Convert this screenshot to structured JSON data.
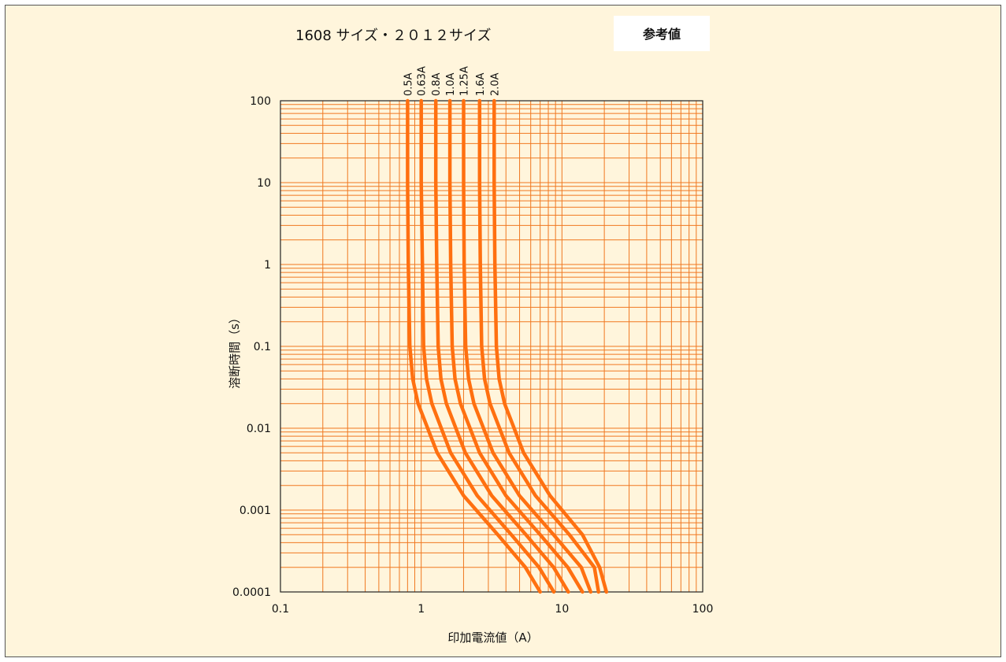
{
  "chart_data": {
    "type": "line",
    "title": "1608 サイズ・２０１２サイズ",
    "badge": "参考値",
    "xlabel": "印加電流値（A）",
    "ylabel": "溶断時間（s）",
    "x_scale": "log",
    "y_scale": "log",
    "xlim": [
      0.1,
      100
    ],
    "ylim": [
      0.0001,
      100
    ],
    "x_ticks": [
      "0.1",
      "1",
      "10",
      "100"
    ],
    "y_ticks": [
      "100",
      "10",
      "1",
      "0.1",
      "0.01",
      "0.001",
      "0.0001"
    ],
    "grid": true,
    "colors": {
      "background": "#fff5dc",
      "grid": "#f07820",
      "curve": "#ff7010",
      "badge_bg": "#ffffff"
    },
    "series": [
      {
        "name": "0.5A",
        "points": [
          [
            0.8,
            100
          ],
          [
            0.8,
            10
          ],
          [
            0.81,
            1
          ],
          [
            0.83,
            0.1
          ],
          [
            0.87,
            0.04
          ],
          [
            0.95,
            0.02
          ],
          [
            1.3,
            0.005
          ],
          [
            2.0,
            0.0015
          ],
          [
            3.5,
            0.0005
          ],
          [
            5.5,
            0.0002
          ],
          [
            7.0,
            0.0001
          ]
        ]
      },
      {
        "name": "0.63A",
        "points": [
          [
            1.0,
            100
          ],
          [
            1.0,
            10
          ],
          [
            1.02,
            1
          ],
          [
            1.04,
            0.1
          ],
          [
            1.09,
            0.04
          ],
          [
            1.19,
            0.02
          ],
          [
            1.62,
            0.005
          ],
          [
            2.5,
            0.0015
          ],
          [
            4.37,
            0.0005
          ],
          [
            6.87,
            0.0002
          ],
          [
            8.75,
            0.0001
          ]
        ]
      },
      {
        "name": "0.8A",
        "points": [
          [
            1.27,
            100
          ],
          [
            1.27,
            10
          ],
          [
            1.29,
            1
          ],
          [
            1.32,
            0.1
          ],
          [
            1.38,
            0.04
          ],
          [
            1.51,
            0.02
          ],
          [
            2.06,
            0.005
          ],
          [
            3.17,
            0.0015
          ],
          [
            5.55,
            0.0005
          ],
          [
            8.72,
            0.0002
          ],
          [
            11.1,
            0.0001
          ]
        ]
      },
      {
        "name": "1.0A",
        "points": [
          [
            1.6,
            100
          ],
          [
            1.6,
            10
          ],
          [
            1.62,
            1
          ],
          [
            1.66,
            0.1
          ],
          [
            1.74,
            0.04
          ],
          [
            1.9,
            0.02
          ],
          [
            2.6,
            0.005
          ],
          [
            4.0,
            0.0015
          ],
          [
            7.0,
            0.0005
          ],
          [
            11,
            0.0002
          ],
          [
            14,
            0.0001
          ]
        ]
      },
      {
        "name": "1.25A",
        "points": [
          [
            2.0,
            100
          ],
          [
            2.0,
            10
          ],
          [
            2.02,
            1
          ],
          [
            2.07,
            0.1
          ],
          [
            2.17,
            0.04
          ],
          [
            2.37,
            0.02
          ],
          [
            3.24,
            0.005
          ],
          [
            4.99,
            0.0015
          ],
          [
            8.72,
            0.0005
          ],
          [
            13.7,
            0.0002
          ],
          [
            16.0,
            0.0001
          ]
        ]
      },
      {
        "name": "1.6A",
        "points": [
          [
            2.6,
            100
          ],
          [
            2.6,
            10
          ],
          [
            2.63,
            1
          ],
          [
            2.69,
            0.1
          ],
          [
            2.82,
            0.04
          ],
          [
            3.08,
            0.02
          ],
          [
            4.21,
            0.005
          ],
          [
            6.48,
            0.0015
          ],
          [
            11.3,
            0.0005
          ],
          [
            17.0,
            0.0002
          ],
          [
            18.2,
            0.0001
          ]
        ]
      },
      {
        "name": "2.0A",
        "points": [
          [
            3.3,
            100
          ],
          [
            3.3,
            10
          ],
          [
            3.34,
            1
          ],
          [
            3.42,
            0.1
          ],
          [
            3.58,
            0.04
          ],
          [
            3.91,
            0.02
          ],
          [
            5.34,
            0.005
          ],
          [
            8.23,
            0.0015
          ],
          [
            14.0,
            0.0005
          ],
          [
            18.5,
            0.0002
          ],
          [
            20.7,
            0.0001
          ]
        ]
      }
    ]
  }
}
